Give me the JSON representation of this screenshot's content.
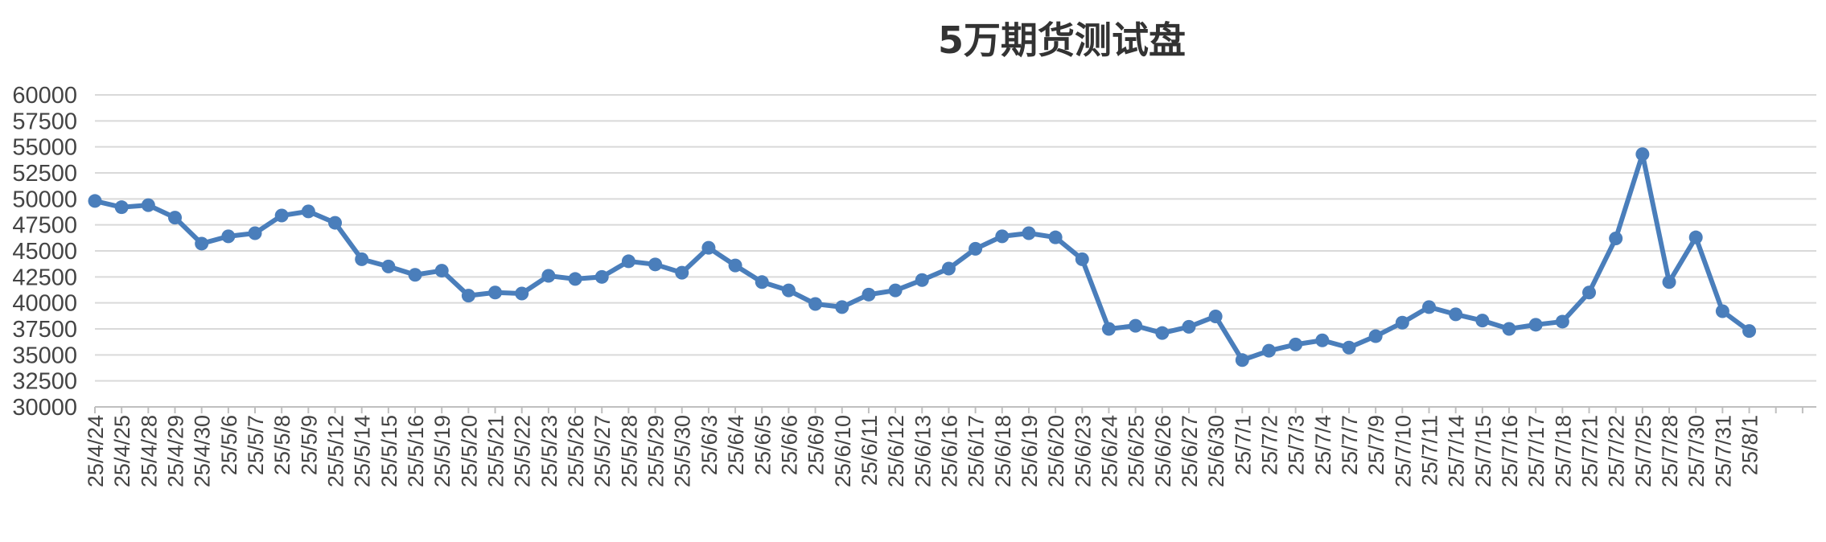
{
  "chart_data": {
    "type": "line",
    "title": "5万期货测试盘",
    "xlabel": "",
    "ylabel": "",
    "ylim": [
      30000,
      60000
    ],
    "yticks": [
      30000,
      32500,
      35000,
      37500,
      40000,
      42500,
      45000,
      47500,
      50000,
      52500,
      55000,
      57500,
      60000
    ],
    "grid": true,
    "line_color": "#4a7ebb",
    "grid_color": "#d9d9d9",
    "categories": [
      "25/4/24",
      "25/4/25",
      "25/4/28",
      "25/4/29",
      "25/4/30",
      "25/5/6",
      "25/5/7",
      "25/5/8",
      "25/5/9",
      "25/5/12",
      "25/5/14",
      "25/5/15",
      "25/5/16",
      "25/5/19",
      "25/5/20",
      "25/5/21",
      "25/5/22",
      "25/5/23",
      "25/5/26",
      "25/5/27",
      "25/5/28",
      "25/5/29",
      "25/5/30",
      "25/6/3",
      "25/6/4",
      "25/6/5",
      "25/6/6",
      "25/6/9",
      "25/6/10",
      "25/6/11",
      "25/6/12",
      "25/6/13",
      "25/6/16",
      "25/6/17",
      "25/6/18",
      "25/6/19",
      "25/6/20",
      "25/6/23",
      "25/6/24",
      "25/6/25",
      "25/6/26",
      "25/6/27",
      "25/6/30",
      "25/7/1",
      "25/7/2",
      "25/7/3",
      "25/7/4",
      "25/7/7",
      "25/7/9",
      "25/7/10",
      "25/7/11",
      "25/7/14",
      "25/7/15",
      "25/7/16",
      "25/7/17",
      "25/7/18",
      "25/7/21",
      "25/7/22",
      "25/7/25",
      "25/7/28",
      "25/7/30",
      "25/7/31",
      "25/8/1"
    ],
    "series": [
      {
        "values": [
          49800,
          49200,
          49400,
          48200,
          45700,
          46400,
          46700,
          48400,
          48800,
          47700,
          44200,
          43500,
          42700,
          43100,
          40700,
          41000,
          40900,
          42600,
          42300,
          42500,
          44000,
          43700,
          42900,
          45300,
          43600,
          42000,
          41200,
          39900,
          39600,
          40800,
          41200,
          42200,
          43300,
          45200,
          46400,
          46700,
          46300,
          44200,
          37500,
          37800,
          37100,
          37700,
          38700,
          34500,
          35400,
          36000,
          36400,
          35700,
          36800,
          38100,
          39600,
          38900,
          38300,
          37500,
          37900,
          38200,
          41000,
          46200,
          54300,
          42000,
          46300,
          39200,
          37300
        ]
      }
    ]
  }
}
